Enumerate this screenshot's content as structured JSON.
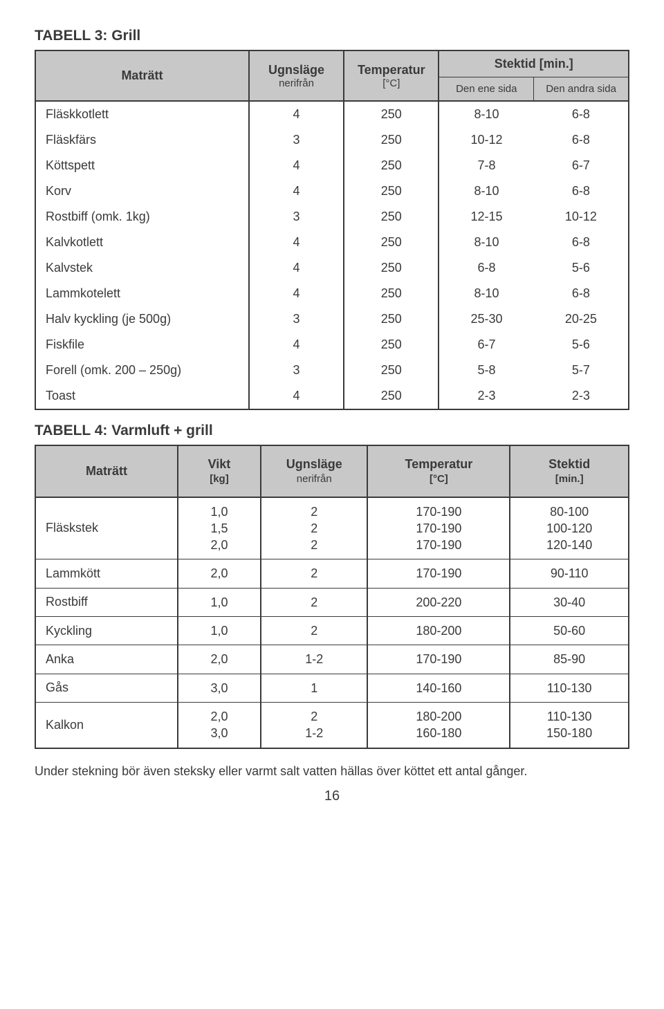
{
  "table3": {
    "title": "TABELL 3: Grill",
    "head": {
      "matratt": "Maträtt",
      "ugnslage": "Ugnsläge",
      "ugnslage_sub": "nerifrån",
      "temperatur": "Temperatur",
      "temperatur_sub": "[°C]",
      "stektid": "Stektid [min.]",
      "ene": "Den ene sida",
      "andra": "Den andra sida"
    },
    "rows": [
      {
        "m": "Fläskkotlett",
        "u": "4",
        "t": "250",
        "s1": "8-10",
        "s2": "6-8"
      },
      {
        "m": "Fläskfärs",
        "u": "3",
        "t": "250",
        "s1": "10-12",
        "s2": "6-8"
      },
      {
        "m": "Köttspett",
        "u": "4",
        "t": "250",
        "s1": "7-8",
        "s2": "6-7"
      },
      {
        "m": "Korv",
        "u": "4",
        "t": "250",
        "s1": "8-10",
        "s2": "6-8"
      },
      {
        "m": "Rostbiff (omk. 1kg)",
        "u": "3",
        "t": "250",
        "s1": "12-15",
        "s2": "10-12"
      },
      {
        "m": "Kalvkotlett",
        "u": "4",
        "t": "250",
        "s1": "8-10",
        "s2": "6-8"
      },
      {
        "m": "Kalvstek",
        "u": "4",
        "t": "250",
        "s1": "6-8",
        "s2": "5-6"
      },
      {
        "m": "Lammkotelett",
        "u": "4",
        "t": "250",
        "s1": "8-10",
        "s2": "6-8"
      },
      {
        "m": "Halv kyckling (je 500g)",
        "u": "3",
        "t": "250",
        "s1": "25-30",
        "s2": "20-25"
      },
      {
        "m": "Fiskfile",
        "u": "4",
        "t": "250",
        "s1": "6-7",
        "s2": "5-6"
      },
      {
        "m": "Forell (omk. 200 – 250g)",
        "u": "3",
        "t": "250",
        "s1": "5-8",
        "s2": "5-7"
      },
      {
        "m": "Toast",
        "u": "4",
        "t": "250",
        "s1": "2-3",
        "s2": "2-3"
      }
    ]
  },
  "table4": {
    "title": "TABELL 4: Varmluft + grill",
    "head": {
      "matratt": "Maträtt",
      "vikt": "Vikt",
      "vikt_sub": "[kg]",
      "ugnslage": "Ugnsläge",
      "ugnslage_sub": "nerifrån",
      "temperatur": "Temperatur",
      "temperatur_sub": "[°C]",
      "stektid": "Stektid",
      "stektid_sub": "[min.]"
    },
    "rows": [
      {
        "m": "Fläskstek",
        "v": "1,0\n1,5\n2,0",
        "u": "2\n2\n2",
        "t": "170-190\n170-190\n170-190",
        "s": "80-100\n100-120\n120-140"
      },
      {
        "m": "Lammkött",
        "v": "2,0",
        "u": "2",
        "t": "170-190",
        "s": "90-110"
      },
      {
        "m": "Rostbiff",
        "v": "1,0",
        "u": "2",
        "t": "200-220",
        "s": "30-40"
      },
      {
        "m": "Kyckling",
        "v": "1,0",
        "u": "2",
        "t": "180-200",
        "s": "50-60"
      },
      {
        "m": "Anka",
        "v": "2,0",
        "u": "1-2",
        "t": "170-190",
        "s": "85-90"
      },
      {
        "m": "Gås",
        "v": "3,0",
        "u": "1",
        "t": "140-160",
        "s": "110-130"
      },
      {
        "m": "Kalkon",
        "v": "2,0\n3,0",
        "u": "2\n1-2",
        "t": "180-200\n160-180",
        "s": "110-130\n150-180"
      }
    ]
  },
  "footnote": "Under stekning bör även steksky eller varmt salt vatten hällas över köttet ett antal gånger.",
  "pagenum": "16",
  "colors": {
    "header_bg": "#c8c8c8",
    "border": "#3a3a3a",
    "text": "#3a3a3a",
    "page_bg": "#ffffff"
  },
  "fonts": {
    "family": "Arial",
    "title_size_pt": 16,
    "body_size_pt": 13
  }
}
